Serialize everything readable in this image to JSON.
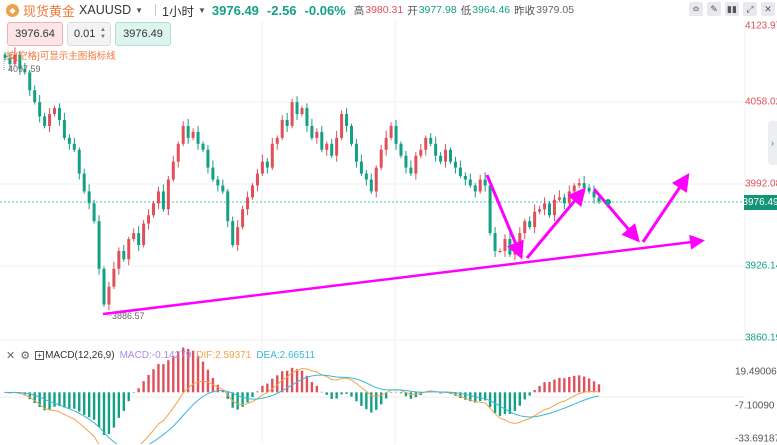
{
  "header": {
    "name": "现货黄金",
    "symbol": "XAUUSD",
    "interval": "1小时",
    "price": "3976.49",
    "change": "-2.56",
    "change_pct": "-0.06%",
    "high_label": "高",
    "high": "3980.31",
    "open_label": "开",
    "open": "3977.98",
    "low_label": "低",
    "low": "3964.46",
    "prev_label": "昨收",
    "prev": "3979.05"
  },
  "toolbar": {
    "icons": [
      "indicator-icon",
      "draw-icon",
      "candle-type-icon",
      "fullscreen-icon",
      "close-icon"
    ]
  },
  "trade": {
    "sell": "3976.64",
    "qty": "0.01",
    "buy": "3976.49"
  },
  "hint": "按[空格]可显示主图指标线",
  "price_axis": {
    "labels": [
      "4123.97",
      "4058.02",
      "3992.08",
      "3926.14",
      "3860.19"
    ],
    "current": "3976.49"
  },
  "markers": {
    "high": "4097.59",
    "low": "3886.57"
  },
  "macd": {
    "title": "MACD(12,26,9)",
    "macd": "MACD:-0.14279",
    "dif": "DIF:2.59371",
    "dea": "DEA:2.66511",
    "axis": [
      "19.49006",
      "-7.10090",
      "-33.69187"
    ]
  },
  "colors": {
    "up": "#e0505a",
    "down": "#14a085",
    "dif": "#f5a34a",
    "dea": "#3ab8d8",
    "annotation": "#ff00ff",
    "macd": "#a98be8"
  },
  "chart_data": {
    "type": "candlestick",
    "ylim": [
      3860.19,
      4123.97
    ],
    "closes": [
      4097,
      4092,
      4100,
      4088,
      4085,
      4070,
      4060,
      4048,
      4040,
      4050,
      4055,
      4045,
      4030,
      4025,
      4020,
      4000,
      3985,
      3975,
      3960,
      3920,
      3890,
      3905,
      3920,
      3935,
      3928,
      3945,
      3950,
      3940,
      3958,
      3965,
      3975,
      3985,
      3970,
      3995,
      4010,
      4025,
      4040,
      4030,
      4035,
      4025,
      4020,
      4005,
      3995,
      3990,
      3985,
      3960,
      3940,
      3955,
      3970,
      3980,
      3990,
      4000,
      4010,
      4005,
      4025,
      4030,
      4045,
      4040,
      4060,
      4050,
      4055,
      4040,
      4030,
      4035,
      4020,
      4025,
      4015,
      4030,
      4050,
      4040,
      4025,
      4010,
      4000,
      3995,
      3985,
      4005,
      4020,
      4030,
      4040,
      4025,
      4015,
      4005,
      4000,
      4015,
      4020,
      4030,
      4025,
      4015,
      4010,
      4020,
      4010,
      4005,
      3998,
      3995,
      3990,
      3985,
      3995,
      3990,
      3950,
      3935,
      3935,
      3945,
      3932,
      3940,
      3950,
      3960,
      3955,
      3968,
      3970,
      3975,
      3965,
      3978,
      3980,
      3975,
      3985,
      3990,
      3992,
      3988,
      3985,
      3980,
      3976.49
    ],
    "macd_ylim": [
      -33.69187,
      19.49006
    ]
  }
}
